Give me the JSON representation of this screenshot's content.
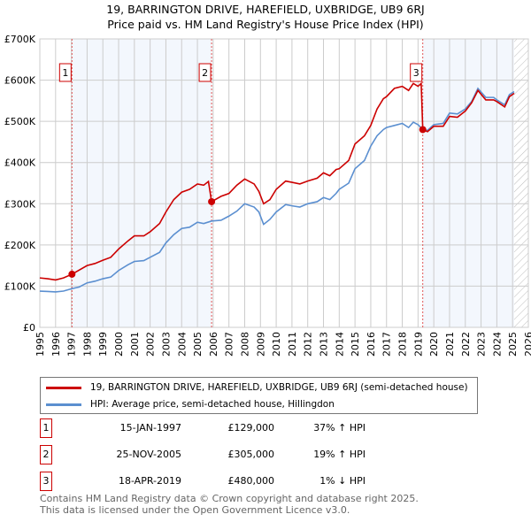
{
  "header": {
    "title": "19, BARRINGTON DRIVE, HAREFIELD, UXBRIDGE, UB9 6RJ",
    "subtitle": "Price paid vs. HM Land Registry's House Price Index (HPI)"
  },
  "chart_data": {
    "type": "line",
    "title": "19, BARRINGTON DRIVE, HAREFIELD, UXBRIDGE, UB9 6RJ",
    "subtitle": "Price paid vs. HM Land Registry's House Price Index (HPI)",
    "xlim": [
      1995,
      2026
    ],
    "ylim": [
      0,
      700000
    ],
    "x_ticks": [
      "1995",
      "1996",
      "1997",
      "1998",
      "1999",
      "2000",
      "2001",
      "2002",
      "2003",
      "2004",
      "2005",
      "2006",
      "2007",
      "2008",
      "2009",
      "2010",
      "2011",
      "2012",
      "2013",
      "2014",
      "2015",
      "2016",
      "2017",
      "2018",
      "2019",
      "2020",
      "2021",
      "2022",
      "2023",
      "2024",
      "2025",
      "2026"
    ],
    "y_ticks": [
      {
        "v": 0,
        "label": "£0"
      },
      {
        "v": 100000,
        "label": "£100K"
      },
      {
        "v": 200000,
        "label": "£200K"
      },
      {
        "v": 300000,
        "label": "£300K"
      },
      {
        "v": 400000,
        "label": "£400K"
      },
      {
        "v": 500000,
        "label": "£500K"
      },
      {
        "v": 600000,
        "label": "£600K"
      },
      {
        "v": 700000,
        "label": "£700K"
      }
    ],
    "grid": true,
    "forecast_from": 2025.1,
    "shaded_ranges": [
      [
        1997.04,
        2005.9
      ],
      [
        2019.3,
        2025.1
      ]
    ],
    "series": [
      {
        "name": "19, BARRINGTON DRIVE, HAREFIELD, UXBRIDGE, UB9 6RJ (semi-detached house)",
        "color": "#cc0000",
        "points": [
          [
            1995,
            120000
          ],
          [
            1995.5,
            118000
          ],
          [
            1996,
            115000
          ],
          [
            1996.5,
            120000
          ],
          [
            1997.04,
            129000
          ],
          [
            1998,
            150000
          ],
          [
            1998.5,
            155000
          ],
          [
            1999,
            163000
          ],
          [
            1999.5,
            170000
          ],
          [
            2000,
            190000
          ],
          [
            2000.6,
            210000
          ],
          [
            2001,
            222000
          ],
          [
            2001.6,
            222000
          ],
          [
            2002,
            232000
          ],
          [
            2002.6,
            252000
          ],
          [
            2003,
            280000
          ],
          [
            2003.5,
            310000
          ],
          [
            2004,
            328000
          ],
          [
            2004.5,
            335000
          ],
          [
            2005,
            348000
          ],
          [
            2005.4,
            345000
          ],
          [
            2005.7,
            354000
          ],
          [
            2005.9,
            305000
          ],
          [
            2006.5,
            318000
          ],
          [
            2007,
            325000
          ],
          [
            2007.5,
            345000
          ],
          [
            2008,
            360000
          ],
          [
            2008.6,
            348000
          ],
          [
            2008.9,
            330000
          ],
          [
            2009.2,
            300000
          ],
          [
            2009.6,
            310000
          ],
          [
            2010,
            335000
          ],
          [
            2010.6,
            355000
          ],
          [
            2011,
            352000
          ],
          [
            2011.5,
            348000
          ],
          [
            2012,
            355000
          ],
          [
            2012.6,
            362000
          ],
          [
            2013,
            375000
          ],
          [
            2013.4,
            368000
          ],
          [
            2013.8,
            383000
          ],
          [
            2014,
            385000
          ],
          [
            2014.6,
            405000
          ],
          [
            2015,
            445000
          ],
          [
            2015.6,
            465000
          ],
          [
            2016,
            490000
          ],
          [
            2016.4,
            530000
          ],
          [
            2016.8,
            555000
          ],
          [
            2017,
            560000
          ],
          [
            2017.5,
            580000
          ],
          [
            2018,
            585000
          ],
          [
            2018.4,
            575000
          ],
          [
            2018.7,
            592000
          ],
          [
            2019,
            585000
          ],
          [
            2019.2,
            592000
          ],
          [
            2019.3,
            480000
          ],
          [
            2019.6,
            475000
          ],
          [
            2020,
            488000
          ],
          [
            2020.6,
            488000
          ],
          [
            2021,
            512000
          ],
          [
            2021.5,
            510000
          ],
          [
            2022,
            525000
          ],
          [
            2022.4,
            545000
          ],
          [
            2022.8,
            575000
          ],
          [
            2023.3,
            552000
          ],
          [
            2023.8,
            552000
          ],
          [
            2024,
            548000
          ],
          [
            2024.5,
            535000
          ],
          [
            2024.8,
            560000
          ],
          [
            2025.1,
            568000
          ]
        ]
      },
      {
        "name": "HPI: Average price, semi-detached house, Hillingdon",
        "color": "#5b8fd0",
        "points": [
          [
            1995,
            88000
          ],
          [
            1995.5,
            87000
          ],
          [
            1996,
            86000
          ],
          [
            1996.5,
            88000
          ],
          [
            1997.04,
            94000
          ],
          [
            1997.5,
            98000
          ],
          [
            1998,
            108000
          ],
          [
            1998.5,
            112000
          ],
          [
            1999,
            118000
          ],
          [
            1999.5,
            122000
          ],
          [
            2000,
            138000
          ],
          [
            2000.6,
            152000
          ],
          [
            2001,
            160000
          ],
          [
            2001.6,
            162000
          ],
          [
            2002,
            170000
          ],
          [
            2002.6,
            182000
          ],
          [
            2003,
            205000
          ],
          [
            2003.5,
            225000
          ],
          [
            2004,
            240000
          ],
          [
            2004.5,
            243000
          ],
          [
            2005,
            255000
          ],
          [
            2005.4,
            252000
          ],
          [
            2005.9,
            258000
          ],
          [
            2006.5,
            260000
          ],
          [
            2007,
            270000
          ],
          [
            2007.5,
            282000
          ],
          [
            2008,
            300000
          ],
          [
            2008.6,
            292000
          ],
          [
            2008.9,
            280000
          ],
          [
            2009.2,
            250000
          ],
          [
            2009.6,
            262000
          ],
          [
            2010,
            280000
          ],
          [
            2010.6,
            298000
          ],
          [
            2011,
            295000
          ],
          [
            2011.5,
            292000
          ],
          [
            2012,
            300000
          ],
          [
            2012.6,
            305000
          ],
          [
            2013,
            315000
          ],
          [
            2013.4,
            310000
          ],
          [
            2013.8,
            325000
          ],
          [
            2014,
            335000
          ],
          [
            2014.6,
            350000
          ],
          [
            2015,
            385000
          ],
          [
            2015.6,
            405000
          ],
          [
            2016,
            440000
          ],
          [
            2016.4,
            465000
          ],
          [
            2016.8,
            480000
          ],
          [
            2017,
            485000
          ],
          [
            2017.5,
            490000
          ],
          [
            2018,
            495000
          ],
          [
            2018.4,
            485000
          ],
          [
            2018.7,
            498000
          ],
          [
            2019,
            492000
          ],
          [
            2019.3,
            480000
          ],
          [
            2019.6,
            478000
          ],
          [
            2020,
            492000
          ],
          [
            2020.6,
            495000
          ],
          [
            2021,
            520000
          ],
          [
            2021.5,
            518000
          ],
          [
            2022,
            530000
          ],
          [
            2022.4,
            548000
          ],
          [
            2022.8,
            580000
          ],
          [
            2023.3,
            558000
          ],
          [
            2023.8,
            558000
          ],
          [
            2024,
            552000
          ],
          [
            2024.5,
            540000
          ],
          [
            2024.8,
            565000
          ],
          [
            2025.1,
            572000
          ]
        ]
      }
    ],
    "sales": [
      {
        "n": "1",
        "date": "15-JAN-1997",
        "x": 1997.04,
        "price": 129000,
        "price_label": "£129,000",
        "hpi": "37% ↑ HPI"
      },
      {
        "n": "2",
        "date": "25-NOV-2005",
        "x": 2005.9,
        "price": 305000,
        "price_label": "£305,000",
        "hpi": "19% ↑ HPI"
      },
      {
        "n": "3",
        "date": "18-APR-2019",
        "x": 2019.3,
        "price": 480000,
        "price_label": "£480,000",
        "hpi": "1% ↓ HPI"
      }
    ]
  },
  "footer": {
    "line1": "Contains HM Land Registry data © Crown copyright and database right 2025.",
    "line2": "This data is licensed under the Open Government Licence v3.0."
  }
}
